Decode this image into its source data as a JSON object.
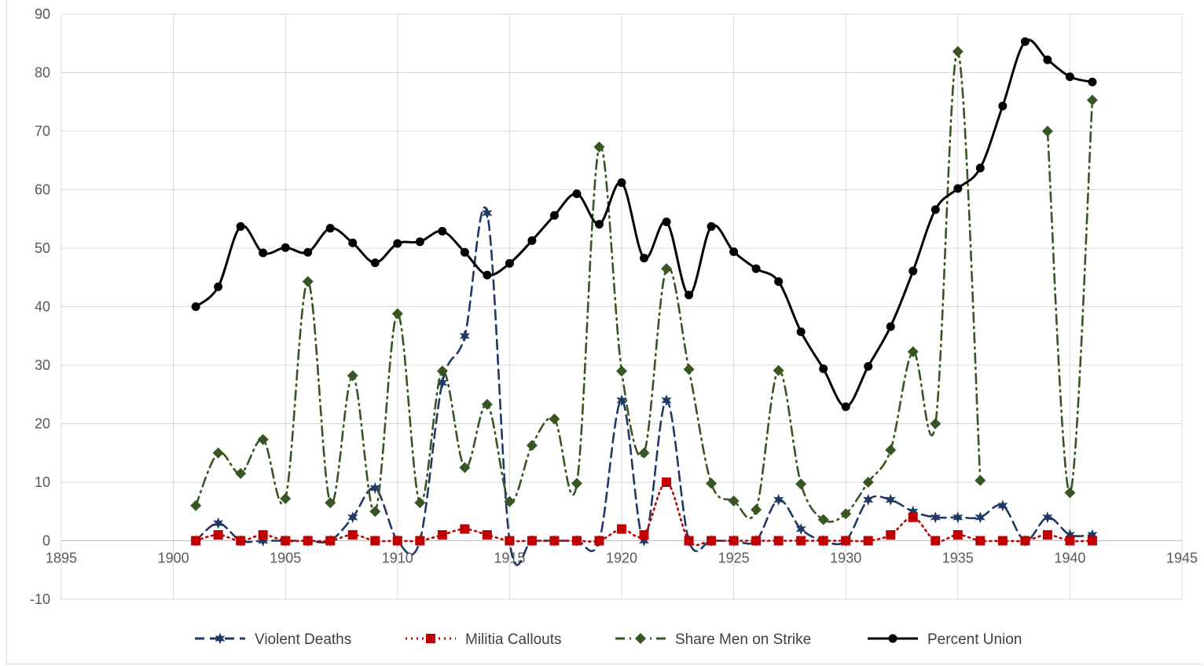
{
  "chart_data": {
    "type": "line",
    "title": "",
    "xlabel": "",
    "ylabel": "",
    "xlim": [
      1895,
      1945
    ],
    "ylim": [
      -10,
      90
    ],
    "x_ticks": [
      1895,
      1900,
      1905,
      1910,
      1915,
      1920,
      1925,
      1930,
      1935,
      1940,
      1945
    ],
    "y_ticks": [
      -10,
      0,
      10,
      20,
      30,
      40,
      50,
      60,
      70,
      80,
      90
    ],
    "grid": "on",
    "smooth": true,
    "legend_position": "bottom",
    "x": [
      1901,
      1902,
      1903,
      1904,
      1905,
      1906,
      1907,
      1908,
      1909,
      1910,
      1911,
      1912,
      1913,
      1914,
      1915,
      1916,
      1917,
      1918,
      1919,
      1920,
      1921,
      1922,
      1923,
      1924,
      1925,
      1926,
      1927,
      1928,
      1929,
      1930,
      1931,
      1932,
      1933,
      1934,
      1935,
      1936,
      1937,
      1938,
      1939,
      1940,
      1941
    ],
    "series": [
      {
        "name": "Violent Deaths",
        "color": "#1f3864",
        "dash": "dash",
        "marker": "star",
        "values": [
          0,
          3,
          0,
          0,
          0,
          0,
          0,
          4,
          9,
          0,
          0,
          27,
          35,
          56,
          0,
          0,
          0,
          0,
          0,
          24,
          0,
          24,
          0,
          0,
          0,
          0,
          7,
          2,
          0,
          0,
          7,
          7,
          5,
          4,
          4,
          4,
          6,
          0,
          4,
          1,
          1
        ]
      },
      {
        "name": "Militia Callouts",
        "color": "#c00000",
        "dash": "dot",
        "marker": "square",
        "values": [
          0,
          1,
          0,
          1,
          0,
          0,
          0,
          1,
          0,
          0,
          0,
          1,
          2,
          1,
          0,
          0,
          0,
          0,
          0,
          2,
          1,
          10,
          0,
          0,
          0,
          0,
          0,
          0,
          0,
          0,
          0,
          1,
          4,
          0,
          1,
          0,
          0,
          0,
          1,
          0,
          0
        ]
      },
      {
        "name": "Share Men on Strike",
        "color": "#375623",
        "dash": "dashdot",
        "marker": "diamond",
        "values": [
          6,
          15,
          11.5,
          17.3,
          7.2,
          44.3,
          6.5,
          28.2,
          5,
          38.8,
          6.5,
          29,
          12.5,
          23.3,
          6.7,
          16.3,
          20.8,
          9.8,
          67.3,
          29,
          15,
          46.5,
          29.3,
          9.8,
          6.8,
          5.3,
          29.1,
          9.7,
          3.6,
          4.6,
          10,
          15.5,
          32.3,
          20,
          83.6,
          10.3,
          null,
          null,
          70,
          8.2,
          75.3
        ]
      },
      {
        "name": "Percent Union",
        "color": "#000000",
        "dash": "solid",
        "marker": "circle",
        "values": [
          40,
          43.4,
          53.7,
          49.2,
          50.1,
          49.3,
          53.4,
          50.9,
          47.5,
          50.8,
          51.1,
          52.9,
          49.3,
          45.4,
          47.4,
          51.3,
          55.6,
          59.3,
          54.1,
          61.2,
          48.3,
          54.5,
          42,
          53.7,
          49.4,
          46.5,
          44.3,
          35.7,
          29.4,
          22.9,
          29.8,
          36.6,
          46.1,
          56.6,
          60.2,
          63.7,
          74.3,
          85.3,
          82.2,
          79.3,
          78.4
        ]
      }
    ]
  }
}
